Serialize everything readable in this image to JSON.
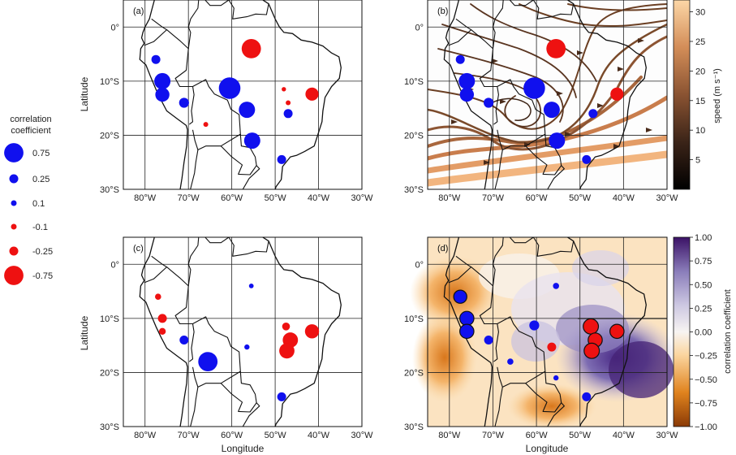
{
  "figure": {
    "x_label": "Longitude",
    "y_label": "Latitude",
    "lon_ticks": [
      "80°W",
      "70°W",
      "60°W",
      "50°W",
      "40°W",
      "30°W"
    ],
    "lat_ticks": [
      "0°",
      "10°S",
      "20°S",
      "30°S"
    ]
  },
  "panels": [
    {
      "label": "(a)",
      "points": [
        {
          "lon": -55.5,
          "lat": -4,
          "r": 0.75,
          "sign": "neg"
        },
        {
          "lon": -77.5,
          "lat": -6,
          "r": 0.25,
          "sign": "pos"
        },
        {
          "lon": -76,
          "lat": -10,
          "r": 0.6,
          "sign": "pos"
        },
        {
          "lon": -76,
          "lat": -12.5,
          "r": 0.5,
          "sign": "pos"
        },
        {
          "lon": -71,
          "lat": -14,
          "r": 0.3,
          "sign": "pos"
        },
        {
          "lon": -60.5,
          "lat": -11.3,
          "r": 0.85,
          "sign": "pos"
        },
        {
          "lon": -56.5,
          "lat": -15.3,
          "r": 0.6,
          "sign": "pos"
        },
        {
          "lon": -55.3,
          "lat": -21,
          "r": 0.6,
          "sign": "pos"
        },
        {
          "lon": -48.5,
          "lat": -24.5,
          "r": 0.25,
          "sign": "pos"
        },
        {
          "lon": -47,
          "lat": -16,
          "r": 0.25,
          "sign": "pos"
        },
        {
          "lon": -41.5,
          "lat": -12.4,
          "r": 0.45,
          "sign": "neg"
        },
        {
          "lon": -47,
          "lat": -14,
          "r": 0.06,
          "sign": "neg"
        },
        {
          "lon": -66,
          "lat": -18,
          "r": 0.06,
          "sign": "neg"
        },
        {
          "lon": -48,
          "lat": -11.5,
          "r": 0.04,
          "sign": "neg"
        }
      ]
    },
    {
      "label": "(b)",
      "points": [
        {
          "lon": -55.5,
          "lat": -4,
          "r": 0.75,
          "sign": "neg"
        },
        {
          "lon": -77.5,
          "lat": -6,
          "r": 0.25,
          "sign": "pos"
        },
        {
          "lon": -76,
          "lat": -10,
          "r": 0.6,
          "sign": "pos"
        },
        {
          "lon": -76,
          "lat": -12.5,
          "r": 0.5,
          "sign": "pos"
        },
        {
          "lon": -71,
          "lat": -14,
          "r": 0.3,
          "sign": "pos"
        },
        {
          "lon": -60.5,
          "lat": -11.3,
          "r": 0.85,
          "sign": "pos"
        },
        {
          "lon": -56.5,
          "lat": -15.3,
          "r": 0.6,
          "sign": "pos"
        },
        {
          "lon": -55.3,
          "lat": -21,
          "r": 0.6,
          "sign": "pos"
        },
        {
          "lon": -48.5,
          "lat": -24.5,
          "r": 0.25,
          "sign": "pos"
        },
        {
          "lon": -47,
          "lat": -16,
          "r": 0.25,
          "sign": "pos"
        },
        {
          "lon": -41.5,
          "lat": -12.4,
          "r": 0.45,
          "sign": "neg"
        }
      ]
    },
    {
      "label": "(c)",
      "points": [
        {
          "lon": -77,
          "lat": -6,
          "r": 0.12,
          "sign": "neg"
        },
        {
          "lon": -76,
          "lat": -10,
          "r": 0.25,
          "sign": "neg"
        },
        {
          "lon": -76,
          "lat": -12.4,
          "r": 0.15,
          "sign": "neg"
        },
        {
          "lon": -71,
          "lat": -14,
          "r": 0.25,
          "sign": "pos"
        },
        {
          "lon": -65.5,
          "lat": -18,
          "r": 0.75,
          "sign": "pos"
        },
        {
          "lon": -56.5,
          "lat": -15.3,
          "r": 0.08,
          "sign": "pos"
        },
        {
          "lon": -55.5,
          "lat": -4,
          "r": 0.05,
          "sign": "pos"
        },
        {
          "lon": -48.5,
          "lat": -24.5,
          "r": 0.25,
          "sign": "pos"
        },
        {
          "lon": -47.5,
          "lat": -11.5,
          "r": 0.2,
          "sign": "neg"
        },
        {
          "lon": -46.5,
          "lat": -14,
          "r": 0.55,
          "sign": "neg"
        },
        {
          "lon": -47.3,
          "lat": -16,
          "r": 0.55,
          "sign": "neg"
        },
        {
          "lon": -41.5,
          "lat": -12.4,
          "r": 0.5,
          "sign": "neg"
        }
      ]
    },
    {
      "label": "(d)",
      "points": [
        {
          "lon": -77.5,
          "lat": -6,
          "r": 0.45,
          "sign": "pos"
        },
        {
          "lon": -76,
          "lat": -10,
          "r": 0.5,
          "sign": "pos"
        },
        {
          "lon": -76,
          "lat": -12.4,
          "r": 0.5,
          "sign": "pos"
        },
        {
          "lon": -71,
          "lat": -14,
          "r": 0.25,
          "sign": "pos"
        },
        {
          "lon": -66,
          "lat": -18,
          "r": 0.12,
          "sign": "pos"
        },
        {
          "lon": -60.5,
          "lat": -11.3,
          "r": 0.3,
          "sign": "pos"
        },
        {
          "lon": -56.5,
          "lat": -15.3,
          "r": 0.25,
          "sign": "neg"
        },
        {
          "lon": -55.5,
          "lat": -4,
          "r": 0.12,
          "sign": "pos"
        },
        {
          "lon": -55.5,
          "lat": -21,
          "r": 0.08,
          "sign": "pos"
        },
        {
          "lon": -48.5,
          "lat": -24.5,
          "r": 0.25,
          "sign": "pos"
        },
        {
          "lon": -47.5,
          "lat": -11.5,
          "r": 0.55,
          "sign": "neg"
        },
        {
          "lon": -46.5,
          "lat": -14,
          "r": 0.5,
          "sign": "neg"
        },
        {
          "lon": -47.3,
          "lat": -16,
          "r": 0.55,
          "sign": "neg"
        },
        {
          "lon": -41.5,
          "lat": -12.4,
          "r": 0.5,
          "sign": "neg"
        }
      ]
    }
  ],
  "legend": {
    "title_line1": "correlation",
    "title_line2": "coefficient",
    "items": [
      {
        "label": "0.75",
        "r": 0.75,
        "sign": "pos"
      },
      {
        "label": "0.25",
        "r": 0.25,
        "sign": "pos"
      },
      {
        "label": "0.1",
        "r": 0.1,
        "sign": "pos"
      },
      {
        "label": "-0.1",
        "r": 0.1,
        "sign": "neg"
      },
      {
        "label": "-0.25",
        "r": 0.25,
        "sign": "neg"
      },
      {
        "label": "-0.75",
        "r": 0.75,
        "sign": "neg"
      }
    ]
  },
  "colorbar_speed": {
    "label": "speed (m s⁻¹)",
    "ticks": [
      "30",
      "25",
      "20",
      "15",
      "10",
      "5"
    ],
    "tick_values": [
      30,
      25,
      20,
      15,
      10,
      5
    ],
    "range": [
      0,
      32
    ]
  },
  "colorbar_corr": {
    "label": "correlation coefficient",
    "ticks": [
      "1.00",
      "0.75",
      "0.50",
      "0.25",
      "0.00",
      "−0.25",
      "−0.50",
      "−0.75",
      "−1.00"
    ],
    "tick_values": [
      1,
      0.75,
      0.5,
      0.25,
      0,
      -0.25,
      -0.5,
      -0.75,
      -1
    ],
    "range": [
      -1,
      1
    ]
  },
  "colors": {
    "positive": "#1010ee",
    "negative": "#ee1111",
    "coast": "#111111",
    "stream": "#7a4a2a"
  }
}
